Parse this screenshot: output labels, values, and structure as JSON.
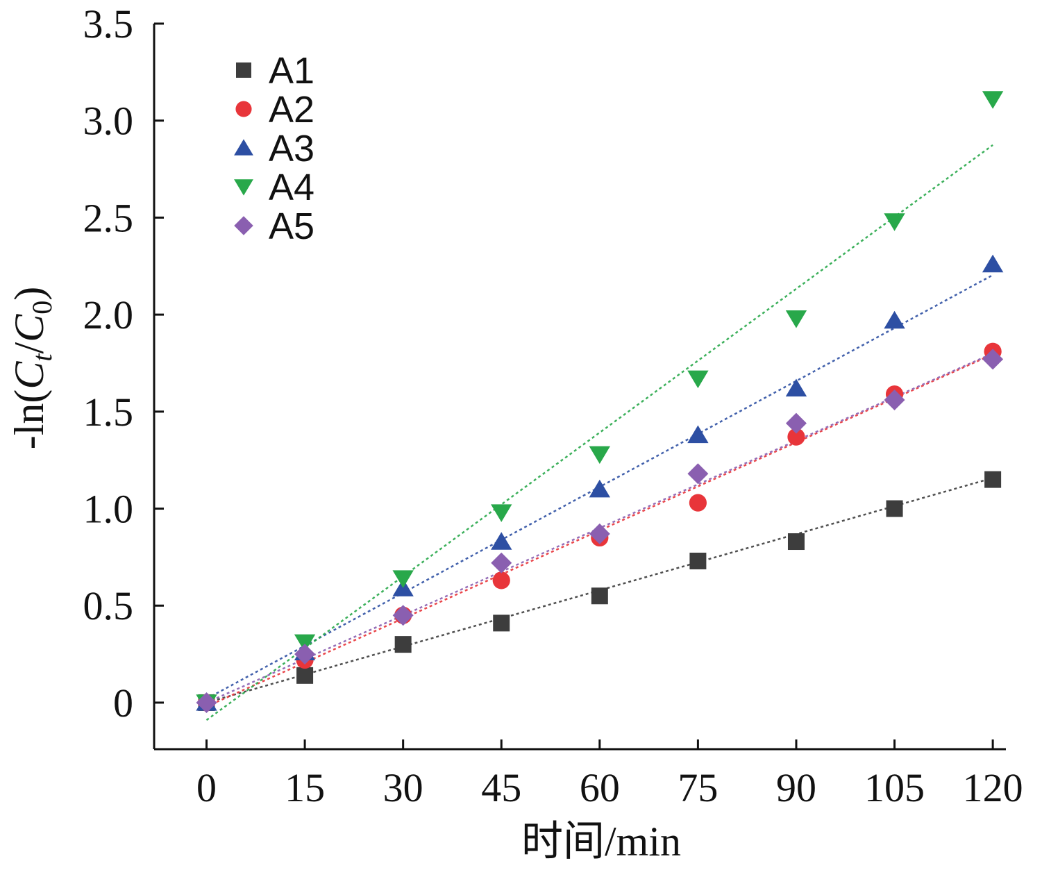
{
  "chart_data": {
    "type": "scatter",
    "xlabel": "时间/min",
    "ylabel_parts": {
      "prefix": "-ln(",
      "c1": "C",
      "sub1": "t",
      "mid": "/",
      "c2": "C",
      "sub2": "0",
      "suffix": ")"
    },
    "xlim": [
      -8,
      122
    ],
    "ylim": [
      -0.24,
      3.5
    ],
    "x_ticks": [
      0,
      15,
      30,
      45,
      60,
      75,
      90,
      105,
      120
    ],
    "y_ticks": [
      0,
      0.5,
      1.0,
      1.5,
      2.0,
      2.5,
      3.0,
      3.5
    ],
    "y_tick_labels": [
      "0",
      "0.5",
      "1.0",
      "1.5",
      "2.0",
      "2.5",
      "3.0",
      "3.5"
    ],
    "grid": false,
    "legend_position": "top-left",
    "x": [
      0,
      15,
      30,
      45,
      60,
      75,
      90,
      105,
      120
    ],
    "series": [
      {
        "name": "A1",
        "marker": "square",
        "color": "#3d3d3d",
        "values": [
          0.0,
          0.14,
          0.3,
          0.41,
          0.55,
          0.73,
          0.83,
          1.0,
          1.15
        ],
        "fit": [
          0.0,
          0.00965
        ]
      },
      {
        "name": "A2",
        "marker": "circle",
        "color": "#e8353a",
        "values": [
          0.0,
          0.22,
          0.45,
          0.63,
          0.85,
          1.03,
          1.37,
          1.59,
          1.81
        ],
        "fit": [
          -0.02,
          0.01513
        ]
      },
      {
        "name": "A3",
        "marker": "triangle-up",
        "color": "#2d4fa3",
        "values": [
          0.0,
          0.26,
          0.59,
          0.83,
          1.1,
          1.38,
          1.62,
          1.97,
          2.26
        ],
        "fit": [
          0.02,
          0.0182
        ]
      },
      {
        "name": "A4",
        "marker": "triangle-down",
        "color": "#28a84a",
        "values": [
          0.0,
          0.31,
          0.64,
          0.98,
          1.28,
          1.67,
          1.98,
          2.48,
          3.11
        ],
        "fit": [
          -0.09,
          0.0247
        ]
      },
      {
        "name": "A5",
        "marker": "diamond",
        "color": "#8a5fb0",
        "values": [
          0.0,
          0.25,
          0.45,
          0.72,
          0.87,
          1.18,
          1.44,
          1.56,
          1.77
        ],
        "fit": [
          0.0,
          0.015
        ]
      }
    ]
  }
}
